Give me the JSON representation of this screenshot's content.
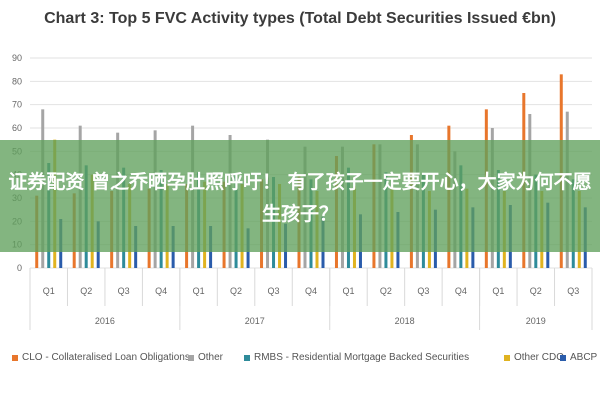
{
  "overlay": {
    "text": "证券配资 曾之乔晒孕肚照呼吁！ 有了孩子一定要开心，大家为何不愿生孩子？"
  },
  "chart_data": {
    "type": "bar",
    "title": "Chart 3: Top 5 FVC Activity types (Total Debt Securities Issued €bn)",
    "ylim": [
      0,
      90
    ],
    "yticks": [
      0,
      10,
      20,
      30,
      40,
      50,
      60,
      70,
      80,
      90
    ],
    "grid": true,
    "legend_position": "bottom",
    "categories": [
      "Q1",
      "Q2",
      "Q3",
      "Q4",
      "Q1",
      "Q2",
      "Q3",
      "Q4",
      "Q1",
      "Q2",
      "Q3",
      "Q4",
      "Q1",
      "Q2",
      "Q3"
    ],
    "groups": [
      {
        "label": "2016",
        "span": 4
      },
      {
        "label": "2017",
        "span": 4
      },
      {
        "label": "2018",
        "span": 4
      },
      {
        "label": "2019",
        "span": 3
      }
    ],
    "series": [
      {
        "name": "CLO - Collateralised Loan Obligations",
        "color": "#e8762c",
        "values": [
          31,
          32,
          33,
          34,
          36,
          37,
          38,
          40,
          48,
          53,
          57,
          61,
          68,
          75,
          83
        ]
      },
      {
        "name": "Other",
        "color": "#a5a5a5",
        "values": [
          68,
          61,
          58,
          59,
          61,
          57,
          55,
          52,
          52,
          53,
          53,
          50,
          60,
          66,
          67
        ]
      },
      {
        "name": "RMBS - Residential Mortgage Backed Securities",
        "color": "#2e8b9a",
        "values": [
          45,
          44,
          43,
          42,
          41,
          40,
          39,
          38,
          43,
          41,
          40,
          44,
          42,
          40,
          38
        ]
      },
      {
        "name": "Other CDO",
        "color": "#e0b320",
        "values": [
          55,
          40,
          36,
          36,
          37,
          36,
          36,
          33,
          35,
          34,
          33,
          34,
          33,
          33,
          33
        ]
      },
      {
        "name": "ABCP",
        "color": "#2a5cab",
        "values": [
          21,
          20,
          18,
          18,
          18,
          17,
          19,
          22,
          23,
          24,
          25,
          26,
          27,
          28,
          26
        ]
      }
    ]
  }
}
